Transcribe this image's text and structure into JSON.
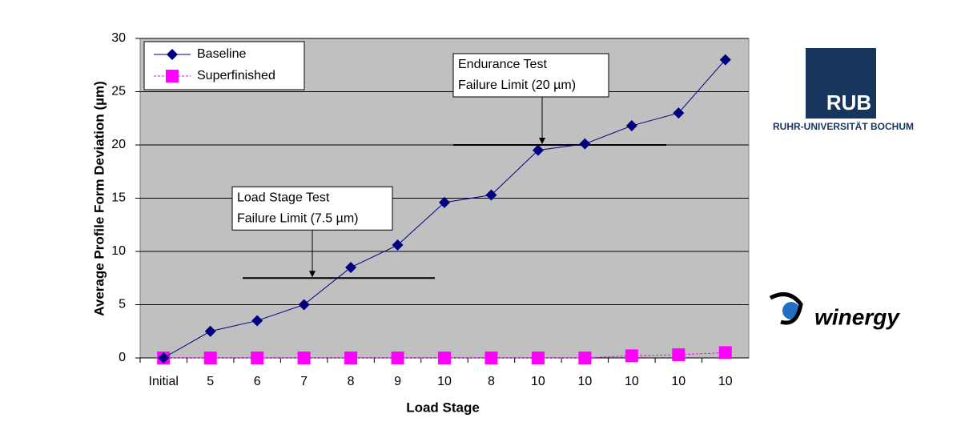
{
  "chart_data": {
    "type": "line",
    "x_label": "Load Stage",
    "y_label": "Average Profile Form Deviation (µm)",
    "categories": [
      "Initial",
      "5",
      "6",
      "7",
      "8",
      "9",
      "10",
      "8",
      "10",
      "10",
      "10",
      "10",
      "10"
    ],
    "series": [
      {
        "name": "Baseline",
        "color": "#000080",
        "marker": "diamond",
        "values": [
          0,
          2.5,
          3.5,
          5.0,
          8.5,
          10.6,
          14.6,
          15.3,
          19.5,
          20.1,
          21.8,
          23.0,
          28.0
        ]
      },
      {
        "name": "Superfinished",
        "color": "#ff00ff",
        "marker": "square",
        "values": [
          0,
          0,
          0,
          0,
          0,
          0,
          0,
          0,
          0,
          0,
          0.2,
          0.3,
          0.5
        ]
      }
    ],
    "ylim": [
      0,
      30
    ],
    "yticks": [
      0,
      5,
      10,
      15,
      20,
      25,
      30
    ],
    "grid": true,
    "legend": "upper left",
    "annotations": [
      {
        "lines": [
          "Load Stage Test",
          "Failure Limit (7.5 µm)"
        ],
        "value": 7.5
      },
      {
        "lines": [
          "Endurance Test",
          "Failure Limit (20 µm)"
        ],
        "value": 20
      }
    ]
  },
  "logos": {
    "rub": "RUB",
    "rub_name": "RUHR-UNIVERSITÄT BOCHUM",
    "winergy": "winergy"
  }
}
